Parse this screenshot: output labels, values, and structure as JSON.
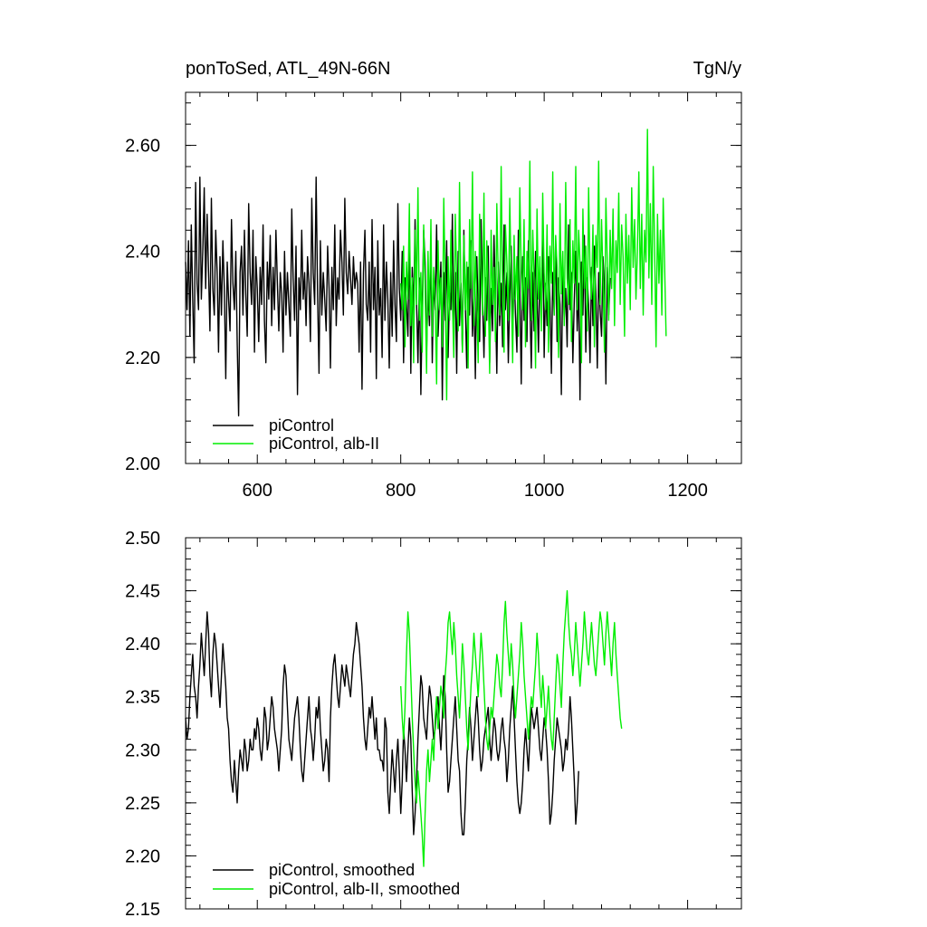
{
  "chart_data": [
    {
      "type": "line",
      "title_left": "ponToSed, ATL_49N-66N",
      "title_right": "TgN/y",
      "xlim": [
        500,
        1275
      ],
      "ylim": [
        2.0,
        2.7
      ],
      "xticks": [
        600,
        800,
        1000,
        1200
      ],
      "xtick_labels": [
        "600",
        "800",
        "1000",
        "1200"
      ],
      "yticks": [
        2.0,
        2.2,
        2.4,
        2.6
      ],
      "ytick_labels": [
        "2.00",
        "2.20",
        "2.40",
        "2.60"
      ],
      "legend_position": "bottom-left",
      "series": [
        {
          "name": "piControl",
          "color": "#000000",
          "x_start": 500,
          "x_step": 2,
          "values": [
            2.38,
            2.29,
            2.42,
            2.24,
            2.45,
            2.31,
            2.19,
            2.53,
            2.34,
            2.29,
            2.54,
            2.31,
            2.4,
            2.52,
            2.33,
            2.47,
            2.36,
            2.25,
            2.5,
            2.33,
            2.28,
            2.44,
            2.36,
            2.21,
            2.39,
            2.28,
            2.42,
            2.33,
            2.16,
            2.38,
            2.31,
            2.25,
            2.46,
            2.34,
            2.29,
            2.4,
            2.23,
            2.09,
            2.36,
            2.41,
            2.28,
            2.44,
            2.32,
            2.24,
            2.49,
            2.36,
            2.3,
            2.44,
            2.21,
            2.39,
            2.33,
            2.23,
            2.37,
            2.3,
            2.45,
            2.27,
            2.19,
            2.38,
            2.31,
            2.43,
            2.26,
            2.37,
            2.29,
            2.44,
            2.34,
            2.25,
            2.36,
            2.32,
            2.21,
            2.4,
            2.28,
            2.36,
            2.3,
            2.24,
            2.48,
            2.35,
            2.27,
            2.41,
            2.13,
            2.35,
            2.29,
            2.44,
            2.31,
            2.36,
            2.26,
            2.39,
            2.34,
            2.23,
            2.5,
            2.36,
            2.3,
            2.54,
            2.32,
            2.17,
            2.42,
            2.28,
            2.36,
            2.31,
            2.25,
            2.41,
            2.33,
            2.18,
            2.37,
            2.29,
            2.45,
            2.26,
            2.35,
            2.31,
            2.44,
            2.38,
            2.28,
            2.5,
            2.36,
            2.32,
            2.4,
            2.35,
            2.3,
            2.39,
            2.33,
            2.36,
            2.34,
            2.21,
            2.38,
            2.14,
            2.36,
            2.44,
            2.3,
            2.27,
            2.38,
            2.21,
            2.46,
            2.29,
            2.37,
            2.16,
            2.42,
            2.28,
            2.33,
            2.2,
            2.45,
            2.27,
            2.38,
            2.31,
            2.18,
            2.36,
            2.24,
            2.42,
            2.3,
            2.23,
            2.49,
            2.33,
            2.27,
            2.4,
            2.19,
            2.35,
            2.3,
            2.24,
            2.43,
            2.17,
            2.37,
            2.28,
            2.46,
            2.31,
            2.19,
            2.35,
            2.13,
            2.29,
            2.44,
            2.38,
            2.21,
            2.33,
            2.26,
            2.41,
            2.19,
            2.35,
            2.29,
            2.45,
            2.24,
            2.31,
            2.38,
            2.12,
            2.36,
            2.27,
            2.42,
            2.2,
            2.33,
            2.29,
            2.47,
            2.23,
            2.36,
            2.17,
            2.4,
            2.26,
            2.34,
            2.21,
            2.44,
            2.3,
            2.18,
            2.37,
            2.28,
            2.42,
            2.24,
            2.33,
            2.16,
            2.39,
            2.29,
            2.23,
            2.46,
            2.31,
            2.2,
            2.35,
            2.27,
            2.41,
            2.19,
            2.33,
            2.25,
            2.43,
            2.3,
            2.17,
            2.38,
            2.26,
            2.34,
            2.22,
            2.45,
            2.29,
            2.36,
            2.19,
            2.32,
            2.41,
            2.24,
            2.37,
            2.28,
            2.21,
            2.44,
            2.33,
            2.15,
            2.39,
            2.27,
            2.35,
            2.23,
            2.42,
            2.3,
            2.18,
            2.36,
            2.25,
            2.4,
            2.32,
            2.21,
            2.37,
            2.29,
            2.44,
            2.2,
            2.34,
            2.26,
            2.39,
            2.31,
            2.17,
            2.36,
            2.28,
            2.42,
            2.23,
            2.35,
            2.3,
            2.13,
            2.38,
            2.27,
            2.33,
            2.22,
            2.45,
            2.29,
            2.36,
            2.19,
            2.31,
            2.4,
            2.25,
            2.34,
            2.12,
            2.38,
            2.28,
            2.43,
            2.21,
            2.35,
            2.3,
            2.19,
            2.37,
            2.26,
            2.41,
            2.32,
            2.18,
            2.36,
            2.29,
            2.24,
            2.39,
            2.33,
            2.15,
            2.37,
            2.28,
            2.35
          ]
        },
        {
          "name": "piControl, alb-II",
          "color": "#00ee00",
          "x_start": 800,
          "x_step": 2,
          "values": [
            2.34,
            2.29,
            2.41,
            2.22,
            2.38,
            2.31,
            2.49,
            2.26,
            2.35,
            2.19,
            2.44,
            2.3,
            2.52,
            2.27,
            2.36,
            2.21,
            2.45,
            2.33,
            2.17,
            2.4,
            2.28,
            2.46,
            2.24,
            2.37,
            2.31,
            2.15,
            2.42,
            2.29,
            2.35,
            2.22,
            2.5,
            2.34,
            2.12,
            2.39,
            2.27,
            2.44,
            2.31,
            2.2,
            2.47,
            2.35,
            2.25,
            2.53,
            2.32,
            2.21,
            2.43,
            2.29,
            2.38,
            2.18,
            2.46,
            2.33,
            2.55,
            2.26,
            2.4,
            2.31,
            2.19,
            2.47,
            2.36,
            2.28,
            2.51,
            2.24,
            2.42,
            2.33,
            2.17,
            2.44,
            2.3,
            2.37,
            2.23,
            2.49,
            2.35,
            2.28,
            2.56,
            2.32,
            2.21,
            2.45,
            2.38,
            2.27,
            2.5,
            2.34,
            2.19,
            2.43,
            2.31,
            2.39,
            2.24,
            2.52,
            2.36,
            2.29,
            2.46,
            2.22,
            2.4,
            2.33,
            2.57,
            2.27,
            2.44,
            2.35,
            2.18,
            2.48,
            2.31,
            2.39,
            2.25,
            2.51,
            2.36,
            2.29,
            2.45,
            2.21,
            2.41,
            2.34,
            2.55,
            2.28,
            2.43,
            2.37,
            2.2,
            2.49,
            2.32,
            2.4,
            2.26,
            2.53,
            2.35,
            2.3,
            2.46,
            2.23,
            2.42,
            2.34,
            2.56,
            2.29,
            2.44,
            2.38,
            2.19,
            2.48,
            2.33,
            2.41,
            2.25,
            2.52,
            2.36,
            2.31,
            2.45,
            2.22,
            2.43,
            2.37,
            2.57,
            2.3,
            2.46,
            2.35,
            2.21,
            2.5,
            2.38,
            2.27,
            2.44,
            2.33,
            2.48,
            2.26,
            2.42,
            2.36,
            2.51,
            2.3,
            2.45,
            2.39,
            2.24,
            2.47,
            2.34,
            2.43,
            2.29,
            2.52,
            2.37,
            2.46,
            2.31,
            2.4,
            2.55,
            2.33,
            2.47,
            2.28,
            2.44,
            2.38,
            2.63,
            2.35,
            2.49,
            2.3,
            2.56,
            2.41,
            2.22,
            2.47,
            2.34,
            2.44,
            2.28,
            2.5,
            2.37,
            2.24
          ]
        }
      ]
    },
    {
      "type": "line",
      "xlim": [
        500,
        1275
      ],
      "ylim": [
        2.15,
        2.5
      ],
      "xticks": [
        600,
        800,
        1000,
        1200
      ],
      "yticks": [
        2.15,
        2.2,
        2.25,
        2.3,
        2.35,
        2.4,
        2.45,
        2.5
      ],
      "ytick_labels": [
        "2.15",
        "2.20",
        "2.25",
        "2.30",
        "2.35",
        "2.40",
        "2.45",
        "2.50"
      ],
      "legend_position": "bottom-left",
      "series": [
        {
          "name": "piControl, smoothed",
          "color": "#000000",
          "x_start": 500,
          "x_step": 2,
          "values": [
            2.33,
            2.31,
            2.32,
            2.35,
            2.37,
            2.39,
            2.36,
            2.35,
            2.33,
            2.36,
            2.38,
            2.41,
            2.39,
            2.37,
            2.4,
            2.43,
            2.41,
            2.37,
            2.35,
            2.39,
            2.41,
            2.4,
            2.38,
            2.36,
            2.34,
            2.37,
            2.4,
            2.38,
            2.36,
            2.33,
            2.32,
            2.29,
            2.27,
            2.26,
            2.29,
            2.27,
            2.25,
            2.28,
            2.3,
            2.29,
            2.28,
            2.31,
            2.3,
            2.28,
            2.29,
            2.31,
            2.3,
            2.3,
            2.32,
            2.31,
            2.33,
            2.32,
            2.3,
            2.29,
            2.31,
            2.34,
            2.33,
            2.3,
            2.31,
            2.33,
            2.35,
            2.34,
            2.32,
            2.31,
            2.3,
            2.28,
            2.3,
            2.32,
            2.36,
            2.38,
            2.37,
            2.34,
            2.31,
            2.3,
            2.29,
            2.31,
            2.33,
            2.34,
            2.35,
            2.33,
            2.3,
            2.28,
            2.27,
            2.29,
            2.31,
            2.33,
            2.35,
            2.32,
            2.31,
            2.29,
            2.31,
            2.34,
            2.33,
            2.35,
            2.32,
            2.3,
            2.28,
            2.29,
            2.31,
            2.3,
            2.27,
            2.33,
            2.36,
            2.38,
            2.39,
            2.37,
            2.35,
            2.34,
            2.36,
            2.38,
            2.37,
            2.36,
            2.38,
            2.37,
            2.36,
            2.35,
            2.37,
            2.39,
            2.4,
            2.42,
            2.41,
            2.4,
            2.38,
            2.36,
            2.33,
            2.31,
            2.3,
            2.32,
            2.34,
            2.33,
            2.35,
            2.33,
            2.31,
            2.33,
            2.3,
            2.3,
            2.29,
            2.29,
            2.28,
            2.33,
            2.32,
            2.26,
            2.24,
            2.27,
            2.3,
            2.28,
            2.26,
            2.29,
            2.31,
            2.28,
            2.24,
            2.27,
            2.32,
            2.3,
            2.27,
            2.3,
            2.33,
            2.31,
            2.26,
            2.22,
            2.24,
            2.27,
            2.31,
            2.34,
            2.37,
            2.36,
            2.33,
            2.32,
            2.31,
            2.34,
            2.36,
            2.35,
            2.33,
            2.31,
            2.32,
            2.34,
            2.35,
            2.32,
            2.3,
            2.33,
            2.37,
            2.35,
            2.3,
            2.26,
            2.27,
            2.29,
            2.31,
            2.33,
            2.35,
            2.32,
            2.29,
            2.28,
            2.24,
            2.22,
            2.22,
            2.25,
            2.29,
            2.31,
            2.34,
            2.32,
            2.29,
            2.31,
            2.33,
            2.35,
            2.33,
            2.3,
            2.28,
            2.29,
            2.31,
            2.32,
            2.33,
            2.34,
            2.31,
            2.29,
            2.31,
            2.33,
            2.32,
            2.3,
            2.29,
            2.3,
            2.32,
            2.33,
            2.31,
            2.3,
            2.27,
            2.29,
            2.32,
            2.34,
            2.36,
            2.33,
            2.3,
            2.27,
            2.25,
            2.24,
            2.25,
            2.27,
            2.3,
            2.32,
            2.3,
            2.28,
            2.31,
            2.34,
            2.33,
            2.32,
            2.33,
            2.34,
            2.32,
            2.3,
            2.29,
            2.31,
            2.33,
            2.32,
            2.3,
            2.27,
            2.23,
            2.24,
            2.26,
            2.29,
            2.31,
            2.33,
            2.32,
            2.31,
            2.3,
            2.28,
            2.29,
            2.31,
            2.3,
            2.32,
            2.35,
            2.33,
            2.3,
            2.27,
            2.23,
            2.25,
            2.28
          ]
        },
        {
          "name": "piControl, alb-II, smoothed",
          "color": "#00ee00",
          "x_start": 800,
          "x_step": 2,
          "values": [
            2.36,
            2.33,
            2.31,
            2.34,
            2.39,
            2.43,
            2.41,
            2.37,
            2.33,
            2.3,
            2.27,
            2.25,
            2.28,
            2.26,
            2.24,
            2.22,
            2.19,
            2.24,
            2.28,
            2.3,
            2.27,
            2.29,
            2.31,
            2.29,
            2.33,
            2.35,
            2.32,
            2.34,
            2.36,
            2.35,
            2.33,
            2.37,
            2.39,
            2.42,
            2.43,
            2.41,
            2.39,
            2.42,
            2.4,
            2.37,
            2.35,
            2.33,
            2.36,
            2.4,
            2.38,
            2.35,
            2.32,
            2.3,
            2.33,
            2.36,
            2.38,
            2.41,
            2.39,
            2.37,
            2.35,
            2.38,
            2.41,
            2.39,
            2.36,
            2.33,
            2.31,
            2.3,
            2.32,
            2.34,
            2.33,
            2.35,
            2.37,
            2.39,
            2.38,
            2.36,
            2.35,
            2.38,
            2.42,
            2.44,
            2.41,
            2.39,
            2.37,
            2.4,
            2.38,
            2.35,
            2.33,
            2.35,
            2.37,
            2.39,
            2.42,
            2.4,
            2.37,
            2.35,
            2.33,
            2.31,
            2.33,
            2.35,
            2.34,
            2.36,
            2.38,
            2.41,
            2.39,
            2.36,
            2.34,
            2.37,
            2.35,
            2.32,
            2.34,
            2.36,
            2.33,
            2.31,
            2.3,
            2.33,
            2.36,
            2.39,
            2.38,
            2.36,
            2.34,
            2.38,
            2.41,
            2.43,
            2.45,
            2.42,
            2.4,
            2.39,
            2.37,
            2.39,
            2.42,
            2.4,
            2.38,
            2.36,
            2.38,
            2.4,
            2.43,
            2.41,
            2.39,
            2.38,
            2.4,
            2.42,
            2.4,
            2.38,
            2.37,
            2.39,
            2.41,
            2.43,
            2.42,
            2.4,
            2.38,
            2.41,
            2.43,
            2.41,
            2.39,
            2.37,
            2.4,
            2.42,
            2.39,
            2.37,
            2.35,
            2.33,
            2.32
          ]
        }
      ]
    }
  ]
}
